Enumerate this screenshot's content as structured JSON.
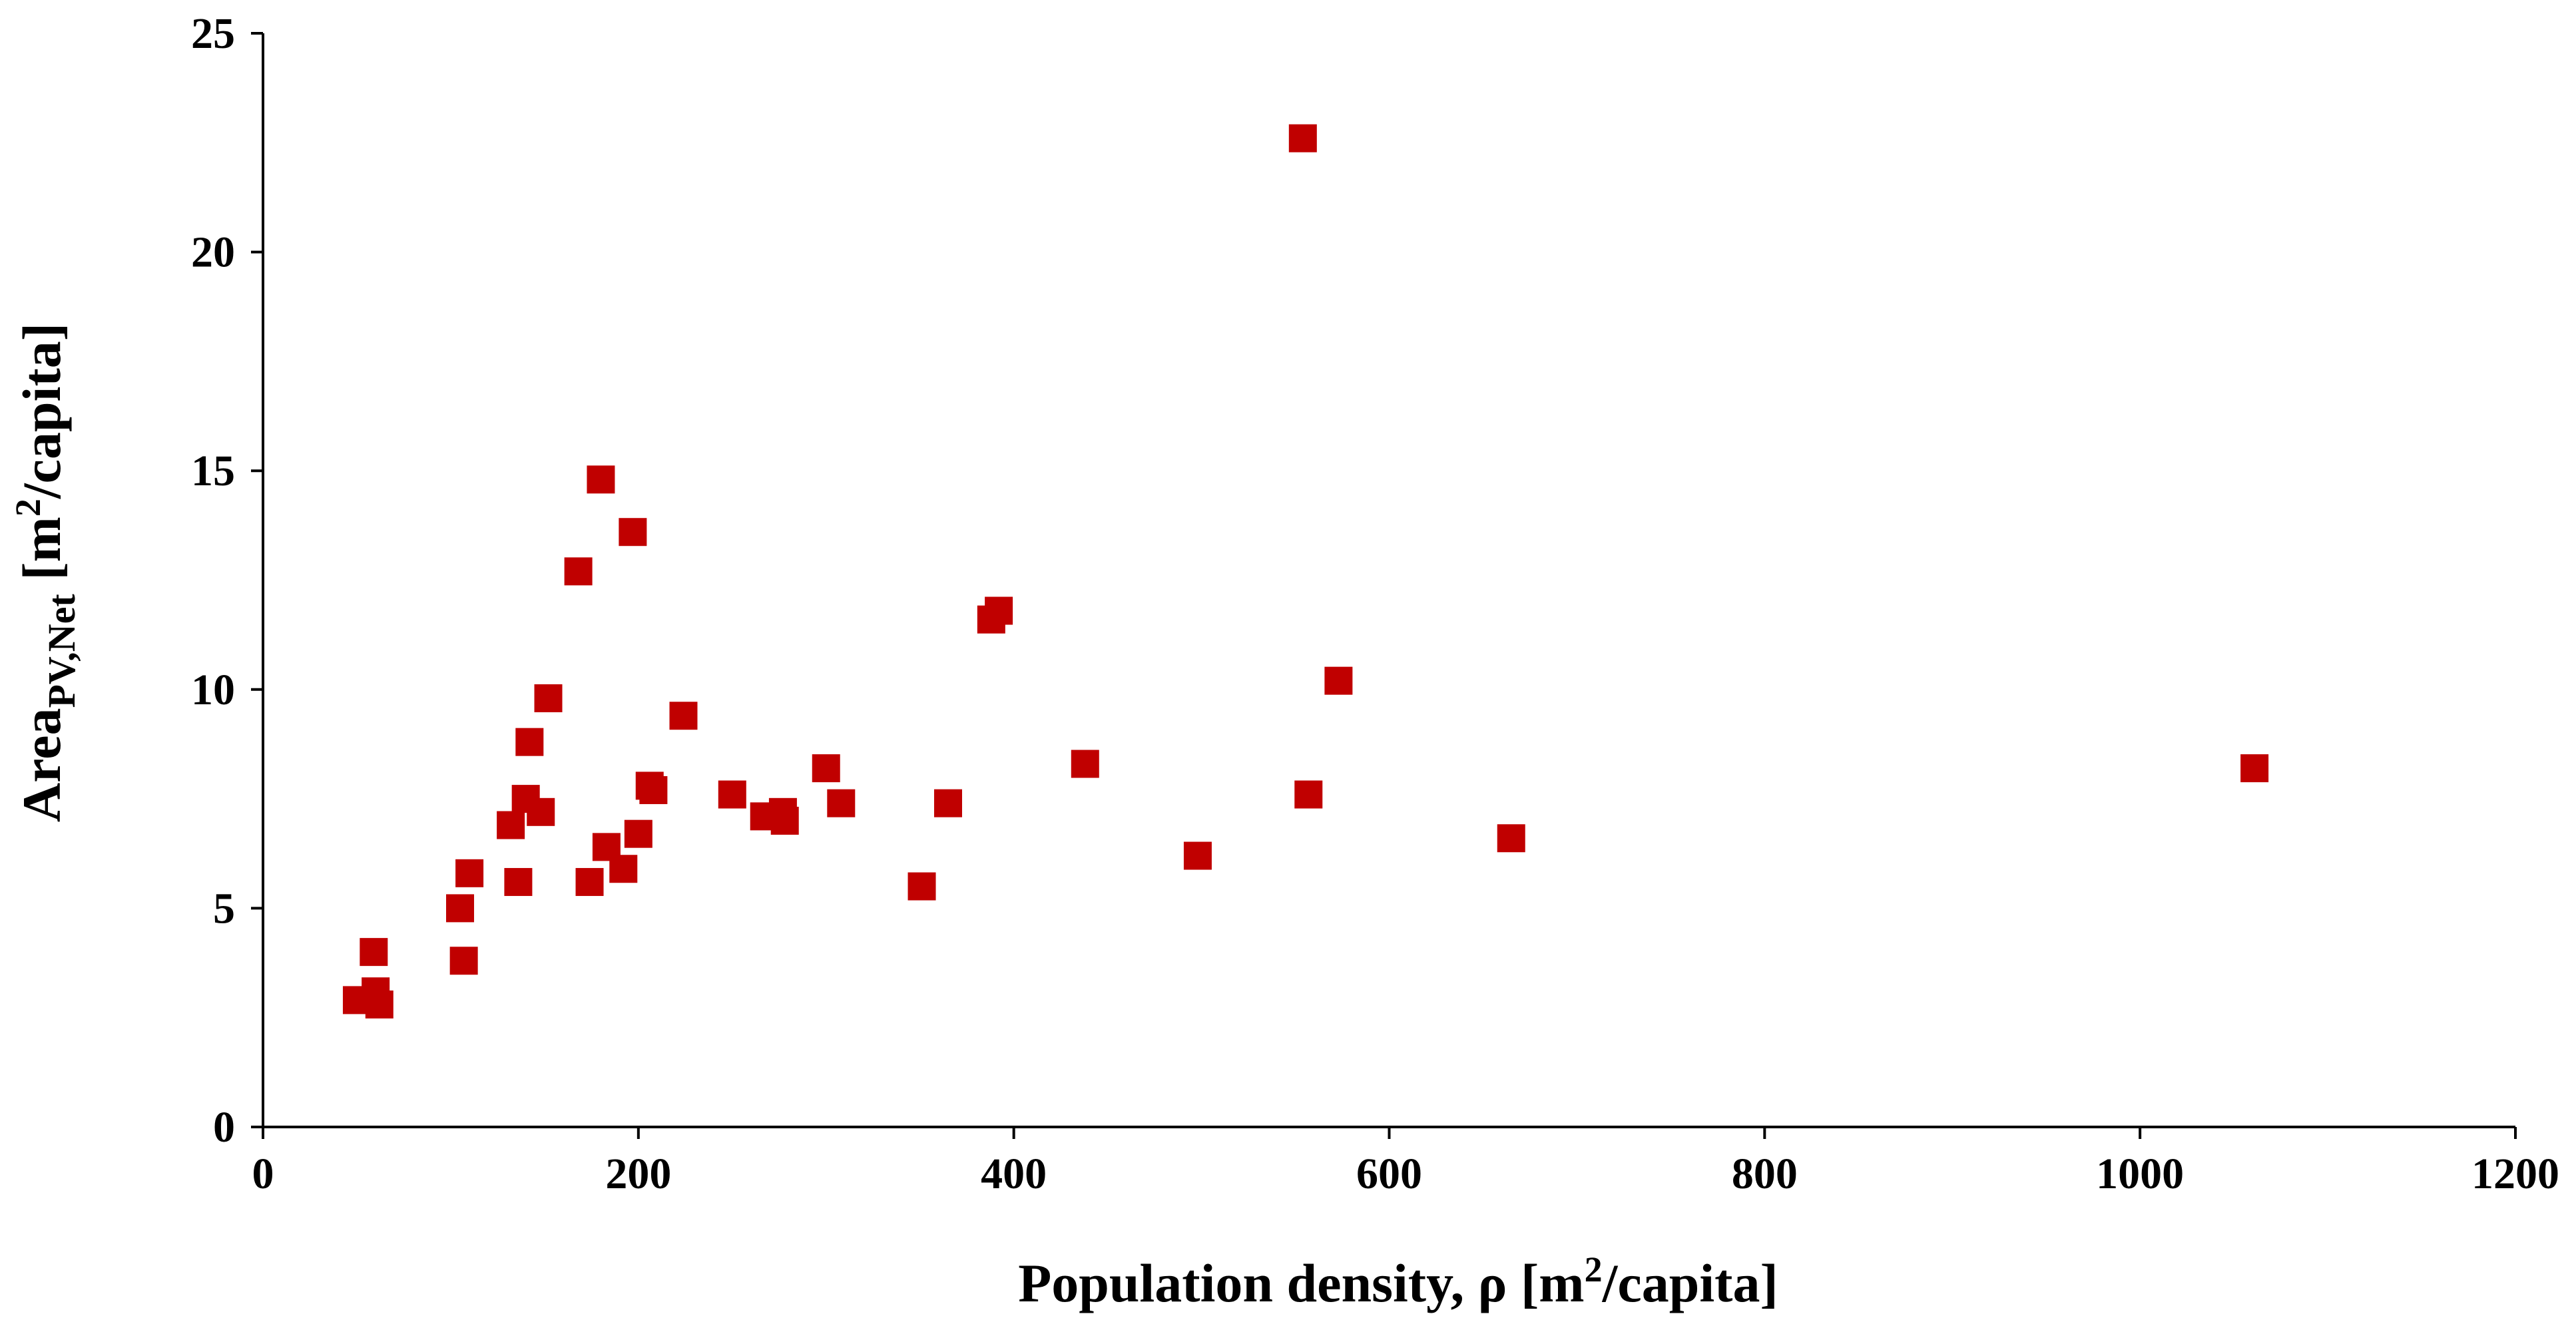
{
  "chart_data": {
    "type": "scatter",
    "title": "",
    "xlabel": {
      "main": "Population density, ρ [m",
      "sup": "2",
      "tail": "/capita]"
    },
    "ylabel": {
      "main": "Area",
      "sub": "PV,Net",
      "mid": " [m",
      "sup": "2",
      "tail": "/capita]"
    },
    "xlim": [
      0,
      1200
    ],
    "ylim": [
      0,
      25
    ],
    "x_ticks": [
      0,
      200,
      400,
      600,
      800,
      1000,
      1200
    ],
    "y_ticks": [
      0,
      5,
      10,
      15,
      20,
      25
    ],
    "grid": false,
    "legend": "none",
    "marker": "square",
    "marker_color": "#C00000",
    "series": [
      {
        "name": "data",
        "points": [
          [
            50,
            2.9
          ],
          [
            59,
            4.0
          ],
          [
            60,
            3.1
          ],
          [
            62,
            2.8
          ],
          [
            105,
            5.0
          ],
          [
            107,
            3.8
          ],
          [
            110,
            5.8
          ],
          [
            132,
            6.9
          ],
          [
            136,
            5.6
          ],
          [
            140,
            7.5
          ],
          [
            142,
            8.8
          ],
          [
            148,
            7.2
          ],
          [
            152,
            9.8
          ],
          [
            168,
            12.7
          ],
          [
            174,
            5.6
          ],
          [
            180,
            14.8
          ],
          [
            183,
            6.4
          ],
          [
            192,
            5.9
          ],
          [
            197,
            13.6
          ],
          [
            200,
            6.7
          ],
          [
            206,
            7.8
          ],
          [
            208,
            7.7
          ],
          [
            224,
            9.4
          ],
          [
            250,
            7.6
          ],
          [
            267,
            7.1
          ],
          [
            277,
            7.2
          ],
          [
            278,
            7.0
          ],
          [
            300,
            8.2
          ],
          [
            308,
            7.4
          ],
          [
            351,
            5.5
          ],
          [
            365,
            7.4
          ],
          [
            388,
            11.6
          ],
          [
            392,
            11.8
          ],
          [
            438,
            8.3
          ],
          [
            498,
            6.2
          ],
          [
            554,
            22.6
          ],
          [
            557,
            7.6
          ],
          [
            573,
            10.2
          ],
          [
            665,
            6.6
          ],
          [
            1061,
            8.2
          ]
        ]
      }
    ]
  }
}
